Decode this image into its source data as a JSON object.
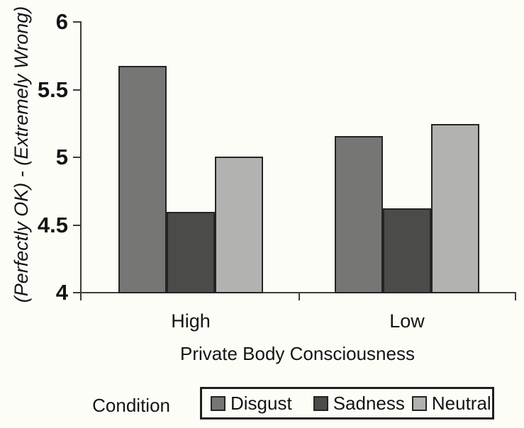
{
  "figure": {
    "background": "#fdfdf8",
    "axis_color": "#3c3c3c",
    "text_color": "#141414"
  },
  "chart_data": {
    "type": "bar",
    "title": "",
    "categories": [
      "High",
      "Low"
    ],
    "series": [
      {
        "name": "Disgust",
        "color": "#767674",
        "values": [
          5.67,
          5.15
        ]
      },
      {
        "name": "Sadness",
        "color": "#4b4b49",
        "values": [
          4.59,
          4.62
        ]
      },
      {
        "name": "Neutral",
        "color": "#b2b2b0",
        "values": [
          5.0,
          5.24
        ]
      }
    ],
    "xlabel": "Private Body Consciousness",
    "ylabel": "(Perfectly OK) - (Extremely Wrong)",
    "ylim": [
      4,
      6
    ],
    "yticks": [
      {
        "value": 6,
        "label": "6"
      },
      {
        "value": 5.5,
        "label": "5.5"
      },
      {
        "value": 5,
        "label": "5"
      },
      {
        "value": 4.5,
        "label": "4.5"
      },
      {
        "value": 4,
        "label": "4"
      }
    ],
    "grid": false,
    "legend_position": "bottom",
    "legend_title": "Condition",
    "bar_border_color": "#242424"
  }
}
